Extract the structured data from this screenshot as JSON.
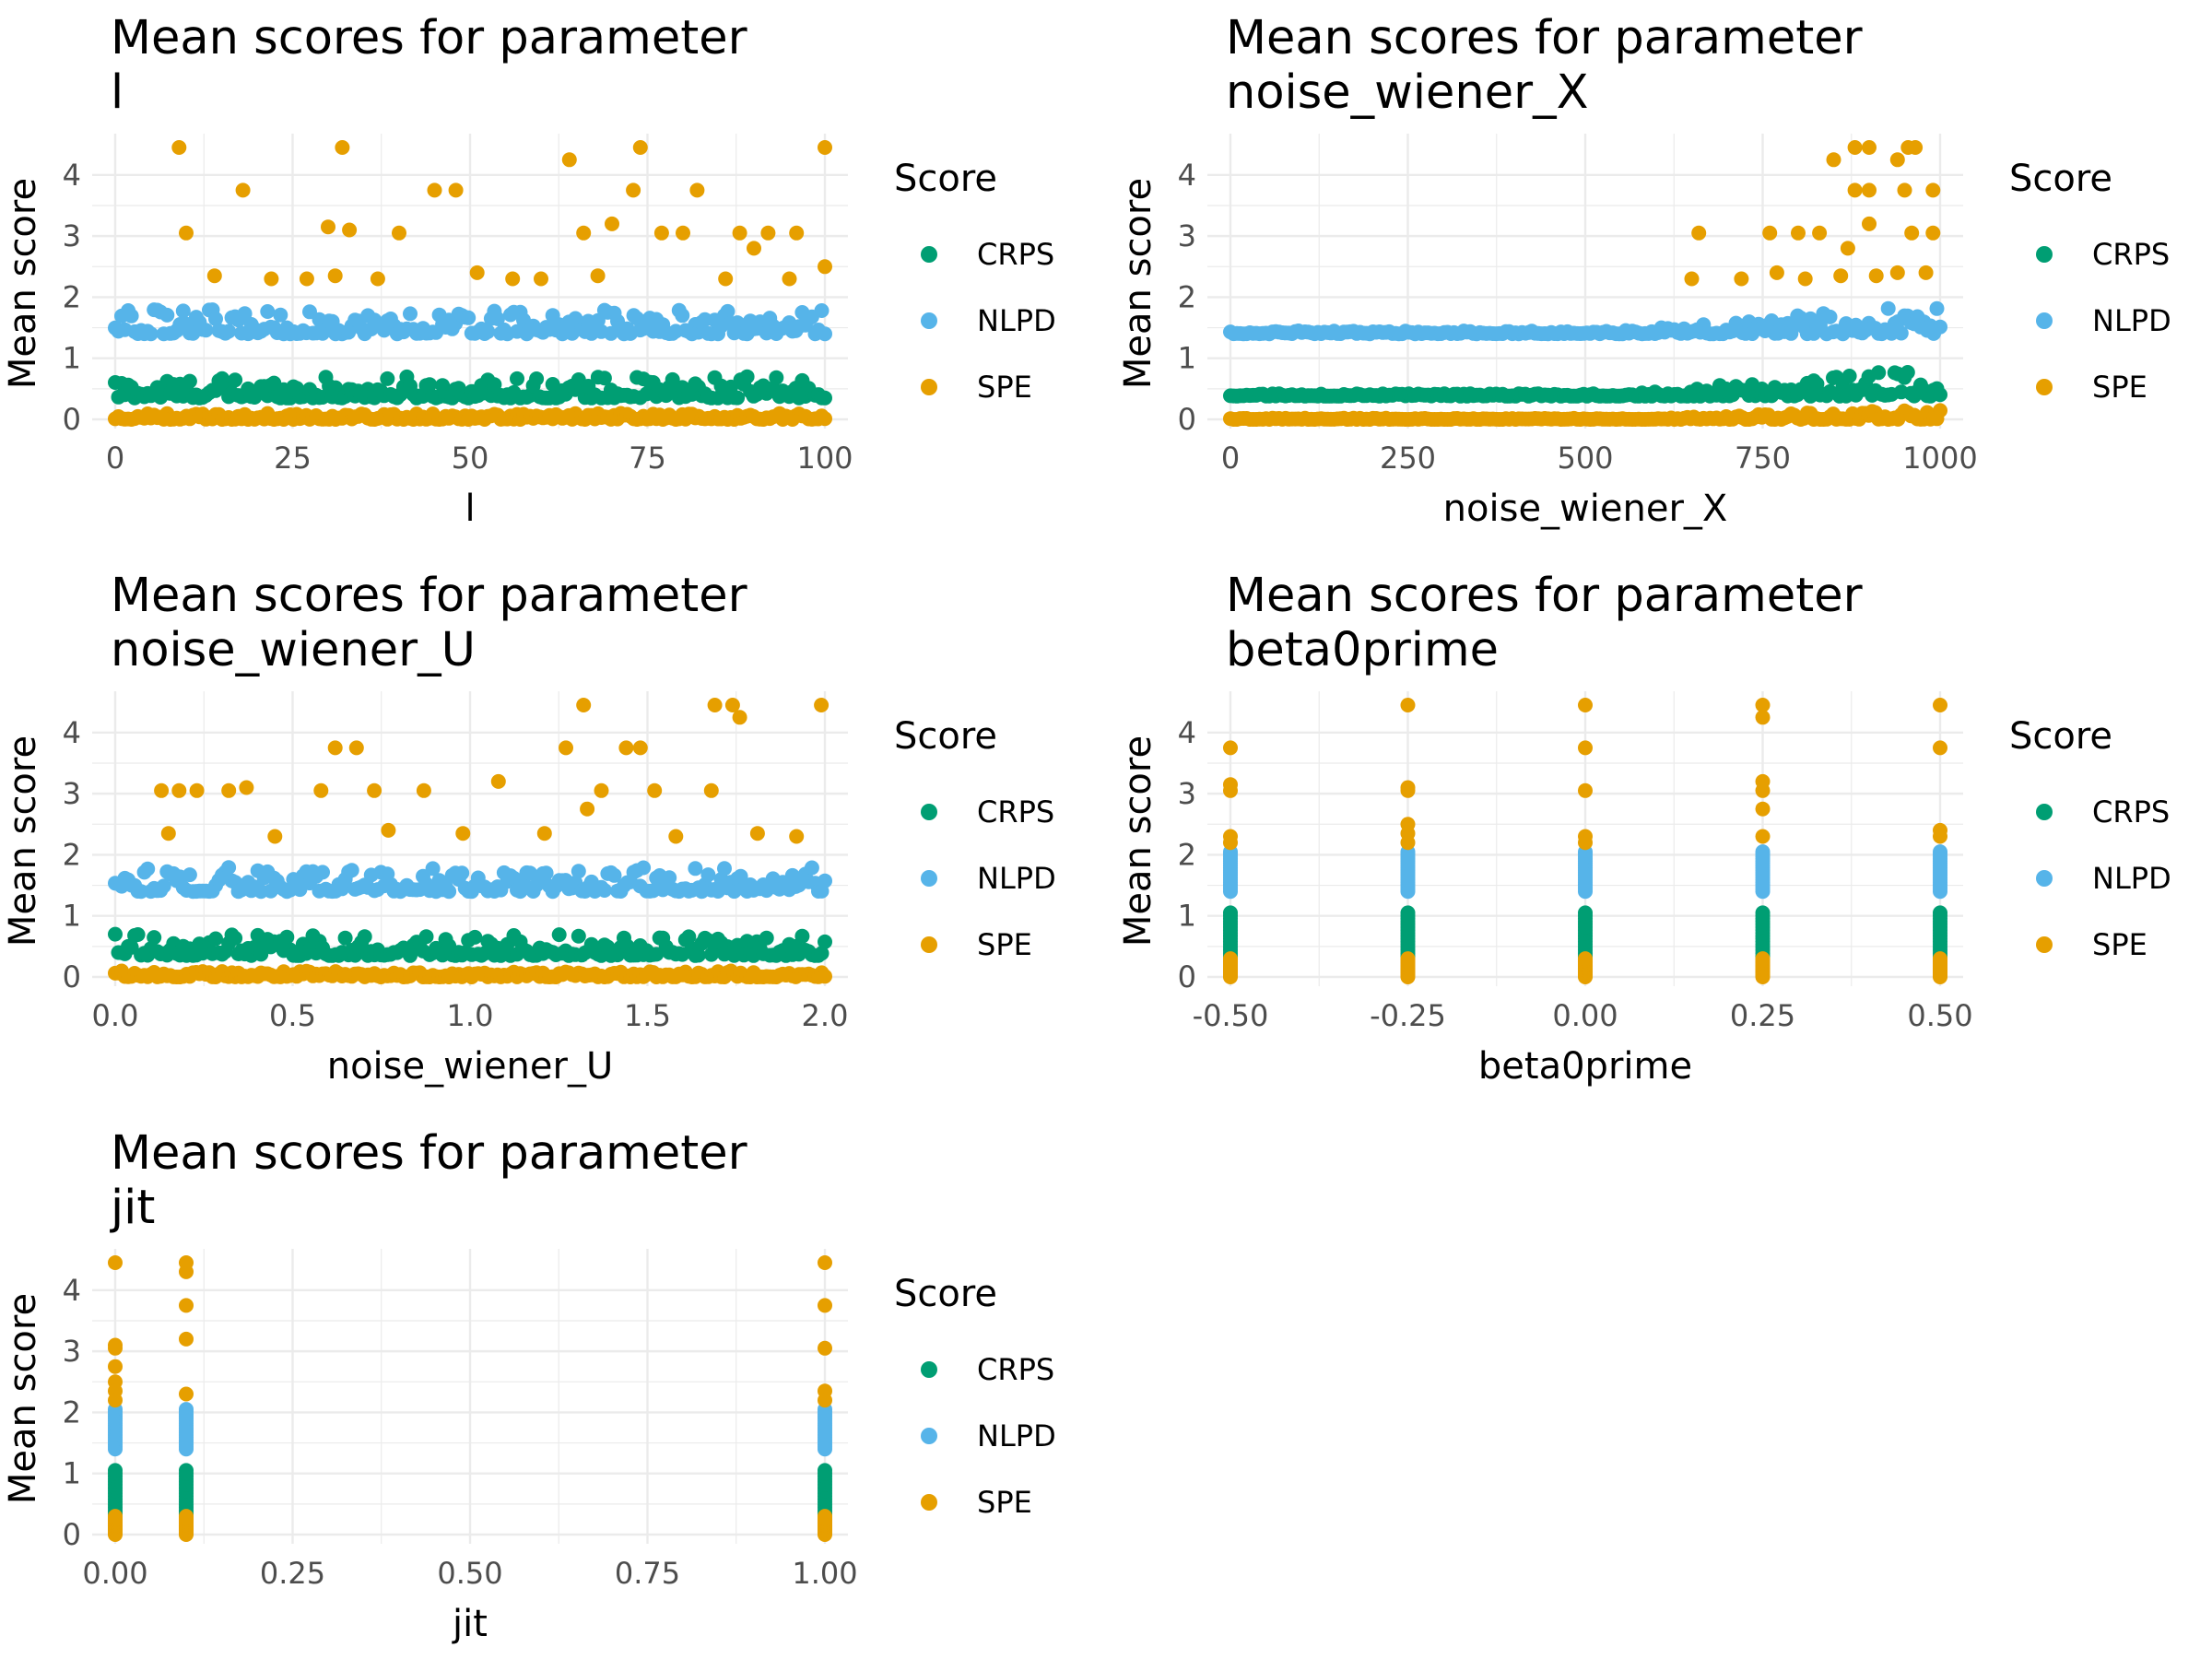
{
  "colors": {
    "CRPS": "#009E73",
    "NLPD": "#56B4E9",
    "SPE": "#E69F00"
  },
  "chart_data": [
    {
      "type": "scatter",
      "title_line1": "Mean scores for parameter",
      "title_line2": " l",
      "xlabel": "l",
      "ylabel": "Mean score",
      "xlim": [
        0,
        100
      ],
      "ylim": [
        0,
        4.45
      ],
      "xticks": [
        0,
        25,
        50,
        75,
        100
      ],
      "xtick_labels": [
        "0",
        "25",
        "50",
        "75",
        "100"
      ],
      "yticks": [
        0,
        1,
        2,
        3,
        4
      ],
      "ytick_labels": [
        "0",
        "1",
        "2",
        "3",
        "4"
      ],
      "legend_title": "Score",
      "legend_labels": [
        "CRPS",
        "NLPD",
        "SPE"
      ],
      "x_range": [
        0,
        100
      ],
      "series": [
        {
          "name": "CRPS",
          "base": 0.35,
          "spread": 0.35,
          "max": 1.05
        },
        {
          "name": "NLPD",
          "base": 1.4,
          "spread": 0.4,
          "max": 2.05
        },
        {
          "name": "SPE",
          "base": 0.0,
          "spread": 0.1,
          "max": 4.45,
          "outliers": [
            [
              9,
              4.45
            ],
            [
              32,
              4.45
            ],
            [
              74,
              4.45
            ],
            [
              100,
              4.45
            ],
            [
              10,
              3.05
            ],
            [
              18,
              3.75
            ],
            [
              30,
              3.15
            ],
            [
              33,
              3.1
            ],
            [
              40,
              3.05
            ],
            [
              45,
              3.75
            ],
            [
              48,
              3.75
            ],
            [
              64,
              4.25
            ],
            [
              66,
              3.05
            ],
            [
              70,
              3.2
            ],
            [
              73,
              3.75
            ],
            [
              77,
              3.05
            ],
            [
              80,
              3.05
            ],
            [
              82,
              3.75
            ],
            [
              88,
              3.05
            ],
            [
              90,
              2.8
            ],
            [
              92,
              3.05
            ],
            [
              96,
              3.05
            ],
            [
              100,
              2.5
            ],
            [
              14,
              2.35
            ],
            [
              22,
              2.3
            ],
            [
              27,
              2.3
            ],
            [
              31,
              2.35
            ],
            [
              37,
              2.3
            ],
            [
              51,
              2.4
            ],
            [
              56,
              2.3
            ],
            [
              60,
              2.3
            ],
            [
              68,
              2.35
            ],
            [
              86,
              2.3
            ],
            [
              95,
              2.3
            ]
          ]
        }
      ]
    },
    {
      "type": "scatter",
      "title_line1": "Mean scores for parameter",
      "title_line2": " noise_wiener_X",
      "xlabel": "noise_wiener_X",
      "ylabel": "Mean score",
      "xlim": [
        0,
        1000
      ],
      "ylim": [
        0,
        4.45
      ],
      "xticks": [
        0,
        250,
        500,
        750,
        1000
      ],
      "xtick_labels": [
        "0",
        "250",
        "500",
        "750",
        "1000"
      ],
      "yticks": [
        0,
        1,
        2,
        3,
        4
      ],
      "ytick_labels": [
        "0",
        "1",
        "2",
        "3",
        "4"
      ],
      "legend_title": "Score",
      "legend_labels": [
        "CRPS",
        "NLPD",
        "SPE"
      ],
      "x_range": [
        0,
        1000
      ],
      "grow_after": 550,
      "series": [
        {
          "name": "CRPS",
          "base": 0.38,
          "spread": 0.04,
          "max": 1.05
        },
        {
          "name": "NLPD",
          "base": 1.4,
          "spread": 0.05,
          "max": 2.05
        },
        {
          "name": "SPE",
          "base": 0.0,
          "spread": 0.02,
          "max": 4.45,
          "outliers": [
            [
              880,
              4.45
            ],
            [
              900,
              4.45
            ],
            [
              955,
              4.45
            ],
            [
              965,
              4.45
            ],
            [
              850,
              4.25
            ],
            [
              940,
              4.25
            ],
            [
              660,
              3.05
            ],
            [
              760,
              3.05
            ],
            [
              800,
              3.05
            ],
            [
              830,
              3.05
            ],
            [
              880,
              3.75
            ],
            [
              900,
              3.75
            ],
            [
              950,
              3.75
            ],
            [
              990,
              3.75
            ],
            [
              900,
              3.2
            ],
            [
              960,
              3.05
            ],
            [
              990,
              3.05
            ],
            [
              870,
              2.8
            ],
            [
              650,
              2.3
            ],
            [
              720,
              2.3
            ],
            [
              770,
              2.4
            ],
            [
              810,
              2.3
            ],
            [
              860,
              2.35
            ],
            [
              910,
              2.35
            ],
            [
              940,
              2.4
            ],
            [
              980,
              2.4
            ]
          ]
        }
      ]
    },
    {
      "type": "scatter",
      "title_line1": "Mean scores for parameter",
      "title_line2": " noise_wiener_U",
      "xlabel": "noise_wiener_U",
      "ylabel": "Mean score",
      "xlim": [
        0,
        2
      ],
      "ylim": [
        0,
        4.45
      ],
      "xticks": [
        0,
        0.5,
        1,
        1.5,
        2
      ],
      "xtick_labels": [
        "0.0",
        "0.5",
        "1.0",
        "1.5",
        "2.0"
      ],
      "yticks": [
        0,
        1,
        2,
        3,
        4
      ],
      "ytick_labels": [
        "0",
        "1",
        "2",
        "3",
        "4"
      ],
      "legend_title": "Score",
      "legend_labels": [
        "CRPS",
        "NLPD",
        "SPE"
      ],
      "x_range": [
        0,
        2
      ],
      "series": [
        {
          "name": "CRPS",
          "base": 0.35,
          "spread": 0.35,
          "max": 1.05
        },
        {
          "name": "NLPD",
          "base": 1.4,
          "spread": 0.4,
          "max": 2.05
        },
        {
          "name": "SPE",
          "base": 0.0,
          "spread": 0.1,
          "max": 4.45,
          "outliers": [
            [
              1.32,
              4.45
            ],
            [
              1.69,
              4.45
            ],
            [
              1.74,
              4.45
            ],
            [
              1.99,
              4.45
            ],
            [
              1.76,
              4.25
            ],
            [
              0.62,
              3.75
            ],
            [
              0.68,
              3.75
            ],
            [
              1.27,
              3.75
            ],
            [
              1.44,
              3.75
            ],
            [
              1.48,
              3.75
            ],
            [
              0.13,
              3.05
            ],
            [
              0.18,
              3.05
            ],
            [
              0.23,
              3.05
            ],
            [
              0.32,
              3.05
            ],
            [
              0.37,
              3.1
            ],
            [
              0.58,
              3.05
            ],
            [
              0.87,
              3.05
            ],
            [
              1.08,
              3.2
            ],
            [
              1.37,
              3.05
            ],
            [
              1.52,
              3.05
            ],
            [
              1.68,
              3.05
            ],
            [
              1.33,
              2.75
            ],
            [
              0.73,
              3.05
            ],
            [
              0.15,
              2.35
            ],
            [
              0.45,
              2.3
            ],
            [
              0.77,
              2.4
            ],
            [
              0.98,
              2.35
            ],
            [
              1.21,
              2.35
            ],
            [
              1.58,
              2.3
            ],
            [
              1.81,
              2.35
            ],
            [
              1.92,
              2.3
            ]
          ]
        }
      ]
    },
    {
      "type": "scatter",
      "title_line1": "Mean scores for parameter",
      "title_line2": " beta0prime",
      "xlabel": "beta0prime",
      "ylabel": "Mean score",
      "xlim": [
        -0.5,
        0.5
      ],
      "ylim": [
        0,
        4.45
      ],
      "xticks": [
        -0.5,
        -0.25,
        0,
        0.25,
        0.5
      ],
      "xtick_labels": [
        "-0.50",
        "-0.25",
        "0.00",
        "0.25",
        "0.50"
      ],
      "yticks": [
        0,
        1,
        2,
        3,
        4
      ],
      "ytick_labels": [
        "0",
        "1",
        "2",
        "3",
        "4"
      ],
      "legend_title": "Score",
      "legend_labels": [
        "CRPS",
        "NLPD",
        "SPE"
      ],
      "discrete_x": [
        -0.5,
        -0.25,
        0,
        0.25,
        0.5
      ],
      "series": [
        {
          "name": "CRPS",
          "low": 0.25,
          "high": 1.05
        },
        {
          "name": "NLPD",
          "low": 1.4,
          "high": 2.05
        },
        {
          "name": "SPE",
          "low": 0.0,
          "high": 0.3,
          "outliers": [
            [
              -0.5,
              3.75
            ],
            [
              -0.5,
              3.15
            ],
            [
              -0.5,
              3.05
            ],
            [
              -0.5,
              2.3
            ],
            [
              -0.5,
              2.2
            ],
            [
              -0.25,
              4.45
            ],
            [
              -0.25,
              3.1
            ],
            [
              -0.25,
              3.05
            ],
            [
              -0.25,
              2.5
            ],
            [
              -0.25,
              2.35
            ],
            [
              -0.25,
              2.2
            ],
            [
              0,
              4.45
            ],
            [
              0,
              3.75
            ],
            [
              0,
              3.05
            ],
            [
              0,
              2.3
            ],
            [
              0,
              2.2
            ],
            [
              0.25,
              4.45
            ],
            [
              0.25,
              4.25
            ],
            [
              0.25,
              3.2
            ],
            [
              0.25,
              3.05
            ],
            [
              0.25,
              2.75
            ],
            [
              0.25,
              2.3
            ],
            [
              0.5,
              4.45
            ],
            [
              0.5,
              3.75
            ],
            [
              0.5,
              2.4
            ],
            [
              0.5,
              2.3
            ]
          ]
        }
      ]
    },
    {
      "type": "scatter",
      "title_line1": "Mean scores for parameter",
      "title_line2": " jit",
      "xlabel": "jit",
      "ylabel": "Mean score",
      "xlim": [
        0,
        1
      ],
      "ylim": [
        0,
        4.45
      ],
      "xticks": [
        0,
        0.25,
        0.5,
        0.75,
        1
      ],
      "xtick_labels": [
        "0.00",
        "0.25",
        "0.50",
        "0.75",
        "1.00"
      ],
      "yticks": [
        0,
        1,
        2,
        3,
        4
      ],
      "ytick_labels": [
        "0",
        "1",
        "2",
        "3",
        "4"
      ],
      "legend_title": "Score",
      "legend_labels": [
        "CRPS",
        "NLPD",
        "SPE"
      ],
      "discrete_x": [
        0,
        0.1,
        1
      ],
      "series": [
        {
          "name": "CRPS",
          "low": 0.25,
          "high": 1.05
        },
        {
          "name": "NLPD",
          "low": 1.4,
          "high": 2.05
        },
        {
          "name": "SPE",
          "low": 0.0,
          "high": 0.3,
          "outliers": [
            [
              0,
              4.45
            ],
            [
              0,
              3.1
            ],
            [
              0,
              3.05
            ],
            [
              0,
              2.75
            ],
            [
              0,
              2.5
            ],
            [
              0,
              2.35
            ],
            [
              0,
              2.2
            ],
            [
              0.1,
              4.45
            ],
            [
              0.1,
              4.3
            ],
            [
              0.1,
              3.75
            ],
            [
              0.1,
              3.2
            ],
            [
              0.1,
              2.3
            ],
            [
              1,
              4.45
            ],
            [
              1,
              3.75
            ],
            [
              1,
              3.05
            ],
            [
              1,
              2.35
            ],
            [
              1,
              2.2
            ]
          ]
        }
      ]
    }
  ]
}
